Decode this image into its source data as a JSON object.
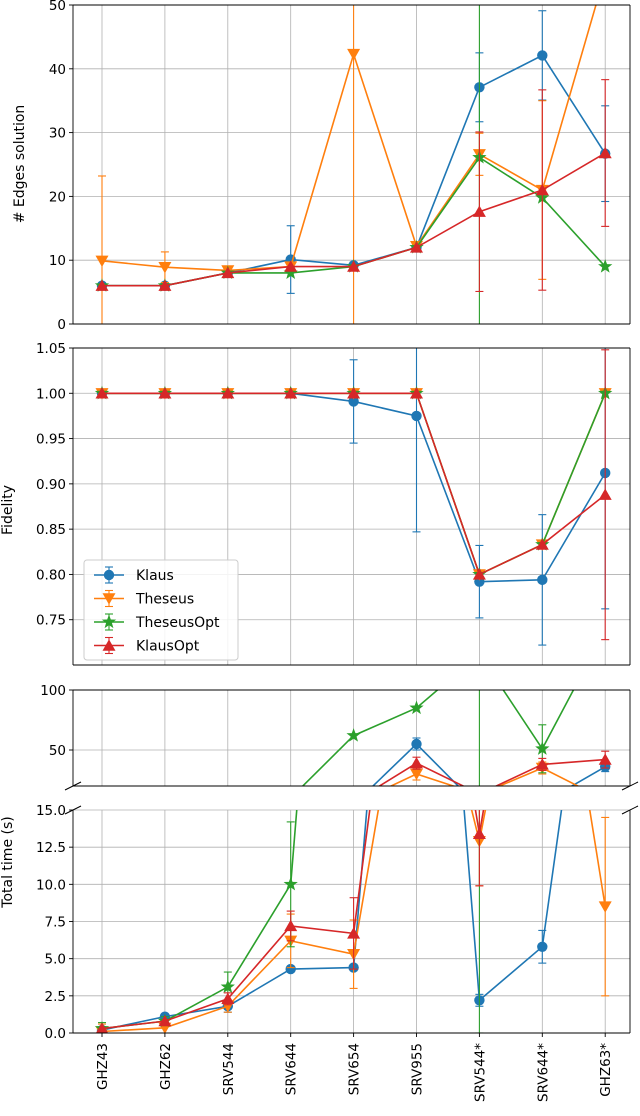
{
  "chart_data": {
    "type": "line",
    "categories": [
      "GHZ43",
      "GHZ62",
      "SRV544",
      "SRV644",
      "SRV654",
      "SRV955",
      "SRV544*",
      "SRV644*",
      "GHZ63*"
    ],
    "legend": {
      "placement": "lower-left of Fidelity panel",
      "entries": [
        {
          "label": "Klaus",
          "color": "#1f77b4",
          "marker": "circle"
        },
        {
          "label": "Theseus",
          "color": "#ff7f0e",
          "marker": "triangle-down"
        },
        {
          "label": "TheseusOpt",
          "color": "#2ca02c",
          "marker": "star"
        },
        {
          "label": "KlausOpt",
          "color": "#d62728",
          "marker": "triangle-up"
        }
      ]
    },
    "panels": [
      {
        "ylabel": "# Edges solution",
        "ylim": [
          0,
          50
        ],
        "yticks": [
          0,
          10,
          20,
          30,
          40,
          50
        ],
        "ytick_labels": [
          "0",
          "10",
          "20",
          "30",
          "40",
          "50"
        ],
        "grid": true,
        "series": [
          {
            "name": "Klaus",
            "values": [
              6,
              6,
              8,
              10.1,
              9.2,
              12,
              37.1,
              42.1,
              26.7
            ],
            "err": [
              0,
              0,
              0,
              5.3,
              0,
              0,
              5.4,
              7,
              7.5
            ]
          },
          {
            "name": "Theseus",
            "values": [
              9.9,
              8.9,
              8.4,
              9,
              42.3,
              12.2,
              26.6,
              21,
              55
            ],
            "err": [
              13.3,
              2.4,
              0.5,
              0,
              42.3,
              0,
              3.3,
              14,
              0
            ]
          },
          {
            "name": "TheseusOpt",
            "values": [
              6,
              6,
              8,
              8,
              9,
              12,
              26.1,
              19.8,
              9
            ],
            "err": [
              0,
              0,
              0,
              0,
              0,
              0,
              55,
              0,
              0
            ]
          },
          {
            "name": "KlausOpt",
            "values": [
              6,
              6,
              8,
              9,
              9,
              12,
              17.6,
              21,
              26.8
            ],
            "err": [
              0,
              0,
              0,
              0,
              0,
              0,
              12.5,
              15.7,
              11.5
            ]
          }
        ]
      },
      {
        "ylabel": "Fidelity",
        "ylim": [
          0.7,
          1.05
        ],
        "yticks": [
          0.75,
          0.8,
          0.85,
          0.9,
          0.95,
          1.0,
          1.05
        ],
        "ytick_labels": [
          "0.75",
          "0.80",
          "0.85",
          "0.90",
          "0.95",
          "1.00",
          "1.05"
        ],
        "grid": true,
        "series": [
          {
            "name": "Klaus",
            "values": [
              1.0,
              1.0,
              1.0,
              1.0,
              0.991,
              0.975,
              0.792,
              0.794,
              0.912
            ],
            "err": [
              0,
              0,
              0,
              0,
              0.046,
              0.128,
              0.04,
              0.072,
              0.15
            ]
          },
          {
            "name": "Theseus",
            "values": [
              1.0,
              1.0,
              1.0,
              1.0,
              1.0,
              1.0,
              0.8,
              0.833,
              1.0
            ],
            "err": [
              0,
              0,
              0,
              0,
              0,
              0,
              0,
              0,
              0
            ]
          },
          {
            "name": "TheseusOpt",
            "values": [
              1.0,
              1.0,
              1.0,
              1.0,
              1.0,
              1.0,
              0.8,
              0.833,
              1.0
            ],
            "err": [
              0,
              0,
              0,
              0,
              0,
              0,
              0,
              0,
              0
            ]
          },
          {
            "name": "KlausOpt",
            "values": [
              1.0,
              1.0,
              1.0,
              1.0,
              1.0,
              1.0,
              0.8,
              0.833,
              0.888
            ],
            "err": [
              0,
              0,
              0,
              0,
              0,
              0,
              0,
              0,
              0.16
            ]
          }
        ]
      },
      {
        "ylabel": "Total time (s)",
        "broken_axis": true,
        "upper_ylim": [
          20,
          100
        ],
        "upper_yticks": [
          50,
          100
        ],
        "upper_ytick_labels": [
          "50",
          "100"
        ],
        "lower_ylim": [
          0,
          15
        ],
        "lower_yticks": [
          0,
          2.5,
          5,
          7.5,
          10,
          12.5,
          15
        ],
        "lower_ytick_labels": [
          "0.0",
          "2.5",
          "5.0",
          "7.5",
          "10.0",
          "12.5",
          "15.0"
        ],
        "grid": true,
        "series": [
          {
            "name": "Klaus",
            "values": [
              0.2,
              1.1,
              1.8,
              4.3,
              4.4,
              55,
              2.2,
              5.8,
              36
            ],
            "err": [
              0,
              0,
              0.4,
              0,
              0,
              5,
              0.4,
              1.1,
              4
            ]
          },
          {
            "name": "Theseus",
            "values": [
              0.1,
              0.35,
              1.8,
              6.2,
              5.3,
              30,
              12.9,
              35,
              8.5
            ],
            "err": [
              0.5,
              0.4,
              0.4,
              1.8,
              2.3,
              5,
              3,
              5,
              6
            ]
          },
          {
            "name": "TheseusOpt",
            "values": [
              0.3,
              0.8,
              3.1,
              10,
              62,
              85,
              130,
              51,
              150
            ],
            "err": [
              0.4,
              0.3,
              1,
              4.2,
              0,
              0,
              130,
              20,
              0
            ]
          },
          {
            "name": "KlausOpt",
            "values": [
              0.3,
              0.8,
              2.3,
              7.2,
              6.7,
              39,
              13.4,
              38,
              42
            ],
            "err": [
              0,
              0,
              0.4,
              1,
              2.4,
              5,
              3.5,
              5,
              7
            ]
          }
        ]
      }
    ]
  }
}
